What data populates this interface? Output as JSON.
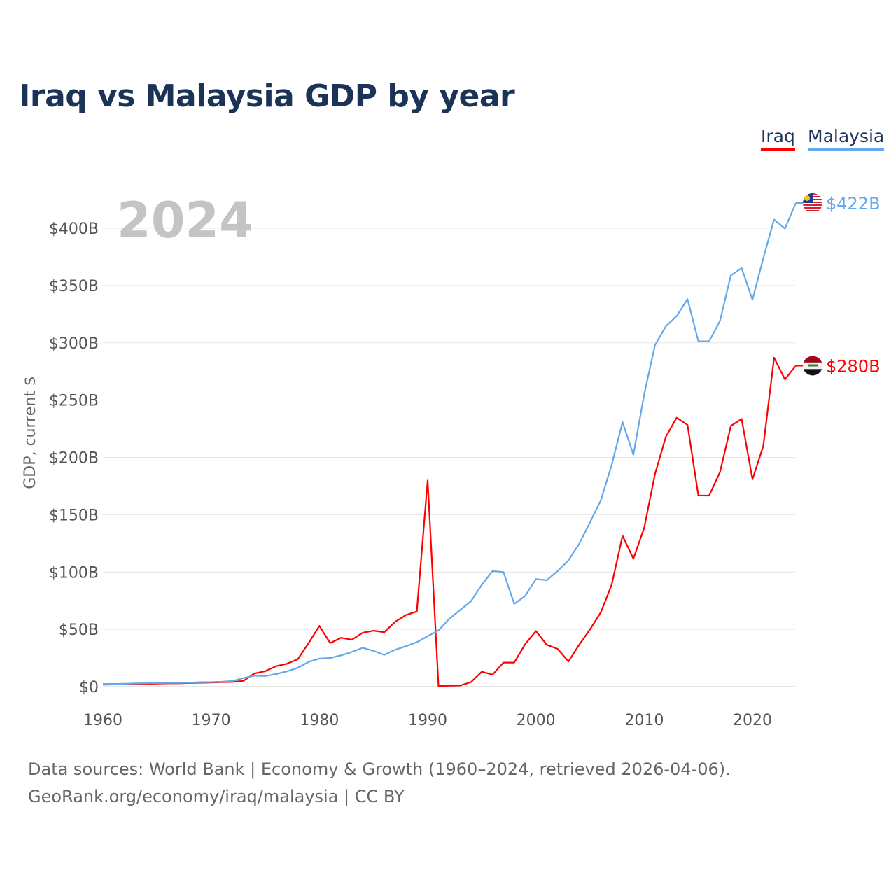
{
  "chart_data": {
    "type": "line",
    "title": "Iraq vs Malaysia GDP by year",
    "ylabel": "GDP, current $",
    "xlabel": "",
    "year_label": "2024",
    "xlim": [
      1960,
      2024
    ],
    "ylim": [
      0,
      400
    ],
    "x_ticks": [
      1960,
      1970,
      1980,
      1990,
      2000,
      2010,
      2020
    ],
    "x_tick_labels": [
      "1960",
      "1970",
      "1980",
      "1990",
      "2000",
      "2010",
      "2020"
    ],
    "y_ticks": [
      0,
      50,
      100,
      150,
      200,
      250,
      300,
      350,
      400
    ],
    "y_tick_labels": [
      "$0",
      "$50B",
      "$100B",
      "$150B",
      "$200B",
      "$250B",
      "$300B",
      "$350B",
      "$400B"
    ],
    "grid": true,
    "legend_position": "top-right",
    "start_year": 1960,
    "series": [
      {
        "name": "Iraq",
        "color": "#ff0000",
        "end_label": "$280B",
        "values": [
          1.7,
          1.9,
          2.0,
          2.1,
          2.4,
          2.7,
          2.9,
          2.9,
          3.2,
          3.4,
          3.6,
          4.0,
          4.1,
          5.1,
          11.5,
          13.5,
          17.9,
          20.0,
          23.9,
          38,
          53,
          38,
          42.6,
          41,
          47,
          48.8,
          47.6,
          56.6,
          62.5,
          65.6,
          180,
          0.5,
          0.8,
          1.0,
          4,
          13,
          10.5,
          21,
          21,
          37,
          48.5,
          36.5,
          33,
          22,
          36.6,
          50,
          65,
          89,
          131.6,
          111.7,
          138.5,
          185.7,
          218,
          234.6,
          228.4,
          166.8,
          166.7,
          187.2,
          227.4,
          233.6,
          180.9,
          210,
          287,
          268,
          280
        ]
      },
      {
        "name": "Malaysia",
        "color": "#62a8ea",
        "end_label": "$422B",
        "values": [
          2.4,
          2.4,
          2.5,
          2.8,
          3.0,
          3.1,
          3.3,
          3.3,
          3.5,
          3.9,
          4.0,
          4.3,
          5.0,
          7.5,
          9.6,
          9.3,
          11,
          13.3,
          16.4,
          21.6,
          24.5,
          25,
          27.3,
          30.3,
          33.9,
          31.2,
          27.7,
          32.2,
          35.3,
          38.8,
          44,
          49.1,
          59.2,
          66.9,
          74.5,
          88.8,
          100.9,
          100,
          72.2,
          79.1,
          93.8,
          92.8,
          100.8,
          110.2,
          124.7,
          143.5,
          162.7,
          193.5,
          230.8,
          202.3,
          255,
          298,
          314.4,
          323.3,
          338.1,
          301.4,
          301.3,
          319.1,
          358.8,
          365.2,
          337.5,
          373.8,
          407.6,
          399.7,
          422
        ]
      }
    ]
  },
  "footer": {
    "line1": "Data sources: World Bank | Economy & Growth (1960–2024, retrieved 2026-04-06).",
    "line2": "GeoRank.org/economy/iraq/malaysia | CC BY"
  }
}
